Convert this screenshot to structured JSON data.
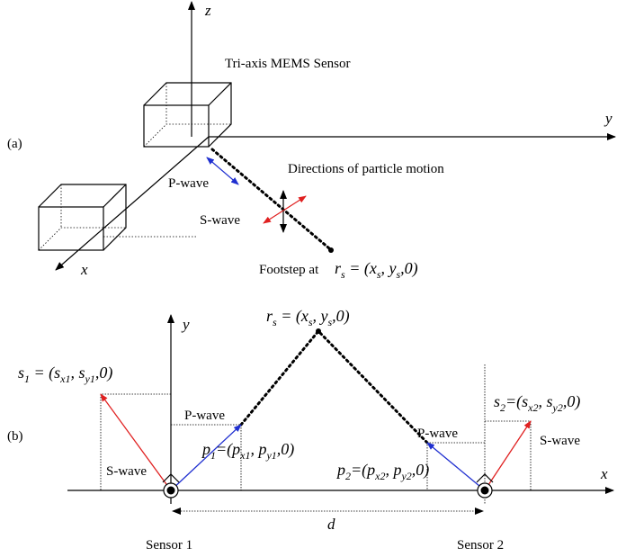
{
  "panel_a": {
    "label": "(a)",
    "z_axis": "z",
    "y_axis": "y",
    "x_axis": "x",
    "sensor_title": "Tri-axis MEMS Sensor",
    "motion_title": "Directions of particle motion",
    "p_wave": "P-wave",
    "s_wave": "S-wave",
    "footstep": "Footstep at",
    "footstep_position": [
      {
        "text": "r"
      },
      {
        "text": "s",
        "sub": true
      },
      {
        "text": " = ("
      },
      {
        "text": "x"
      },
      {
        "text": "s",
        "sub": true
      },
      {
        "text": ", "
      },
      {
        "text": "y"
      },
      {
        "text": "s",
        "sub": true
      },
      {
        "text": ",0)"
      }
    ]
  },
  "panel_b": {
    "label": "(b)",
    "y_axis": "y",
    "x_axis": "x",
    "source_position": [
      {
        "text": "r"
      },
      {
        "text": "s",
        "sub": true
      },
      {
        "text": " = ("
      },
      {
        "text": "x"
      },
      {
        "text": "s",
        "sub": true
      },
      {
        "text": ", "
      },
      {
        "text": "y"
      },
      {
        "text": "s",
        "sub": true
      },
      {
        "text": ",0)"
      }
    ],
    "s1": [
      {
        "text": "s"
      },
      {
        "text": "1",
        "sub": true
      },
      {
        "text": " = ("
      },
      {
        "text": "s"
      },
      {
        "text": "x1",
        "sub": true
      },
      {
        "text": ", "
      },
      {
        "text": "s"
      },
      {
        "text": "y1",
        "sub": true
      },
      {
        "text": ",0)"
      }
    ],
    "p1": [
      {
        "text": "p"
      },
      {
        "text": "1",
        "sub": true
      },
      {
        "text": "=("
      },
      {
        "text": "p"
      },
      {
        "text": "x1",
        "sub": true
      },
      {
        "text": ", "
      },
      {
        "text": "p"
      },
      {
        "text": "y1",
        "sub": true
      },
      {
        "text": ",0)"
      }
    ],
    "p2": [
      {
        "text": "p"
      },
      {
        "text": "2",
        "sub": true
      },
      {
        "text": "=("
      },
      {
        "text": "p"
      },
      {
        "text": "x2",
        "sub": true
      },
      {
        "text": ", "
      },
      {
        "text": "p"
      },
      {
        "text": "y2",
        "sub": true
      },
      {
        "text": ",0)"
      }
    ],
    "s2": [
      {
        "text": "s"
      },
      {
        "text": "2",
        "sub": true
      },
      {
        "text": "=("
      },
      {
        "text": "s"
      },
      {
        "text": "x2",
        "sub": true
      },
      {
        "text": ", "
      },
      {
        "text": "s"
      },
      {
        "text": "y2",
        "sub": true
      },
      {
        "text": ",0)"
      }
    ],
    "p_wave_left": "P-wave",
    "s_wave_left": "S-wave",
    "p_wave_right": "P-wave",
    "s_wave_right": "S-wave",
    "distance": "d",
    "sensor1": "Sensor 1",
    "sensor2": "Sensor 2"
  }
}
